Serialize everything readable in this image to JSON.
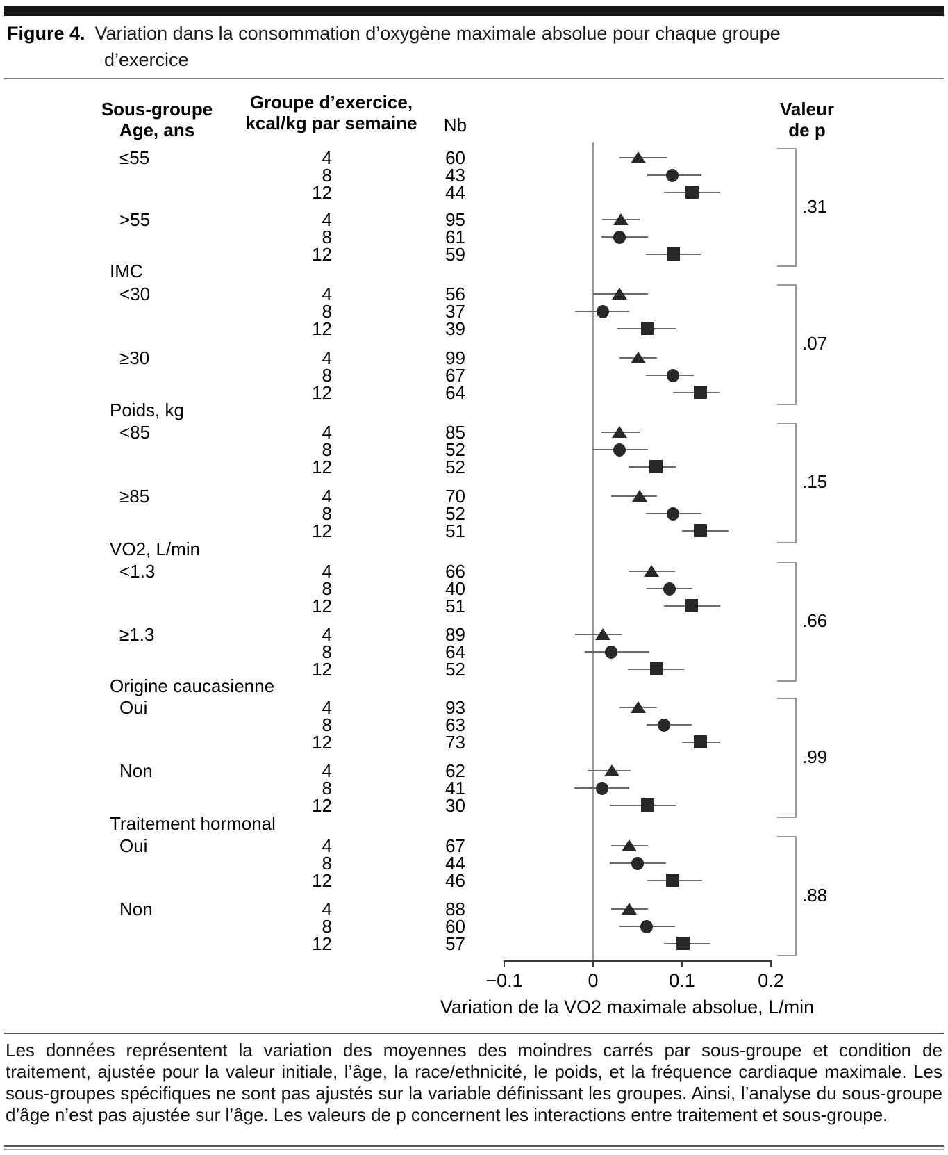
{
  "figure": {
    "label": "Figure 4.",
    "title_line1": "Variation dans la consommation d’oxygène maximale absolue pour chaque groupe",
    "title_line2": "d’exercice"
  },
  "columns": {
    "subgroup": [
      "Sous-groupe",
      "Age, ans"
    ],
    "exercise": [
      "Groupe d’exercice,",
      "kcal/kg par semaine"
    ],
    "n": "Nb",
    "p": [
      "Valeur",
      "de p"
    ]
  },
  "chart_data": {
    "type": "forest",
    "xlabel": "Variation de la VO2 maximale absolue, L/min",
    "xlim": [
      -0.1,
      0.2
    ],
    "x_ticks": [
      {
        "v": -0.1,
        "label": "−0.1"
      },
      {
        "v": 0,
        "label": "0"
      },
      {
        "v": 0.1,
        "label": "0.1"
      },
      {
        "v": 0.2,
        "label": "0.2"
      }
    ],
    "marker_by_dose": {
      "4": "triangle",
      "8": "circle",
      "12": "square"
    },
    "pairs": [
      {
        "section": null,
        "p_value": ".31",
        "groups": [
          {
            "label": "≤55",
            "rows": [
              {
                "dose": "4",
                "n": "60",
                "est": 0.051,
                "lo": 0.03,
                "hi": 0.083
              },
              {
                "dose": "8",
                "n": "43",
                "est": 0.089,
                "lo": 0.061,
                "hi": 0.122
              },
              {
                "dose": "12",
                "n": "44",
                "est": 0.111,
                "lo": 0.08,
                "hi": 0.143
              }
            ]
          },
          {
            "label": ">55",
            "rows": [
              {
                "dose": "4",
                "n": "95",
                "est": 0.031,
                "lo": 0.01,
                "hi": 0.052
              },
              {
                "dose": "8",
                "n": "61",
                "est": 0.03,
                "lo": 0.009,
                "hi": 0.062
              },
              {
                "dose": "12",
                "n": "59",
                "est": 0.09,
                "lo": 0.059,
                "hi": 0.121
              }
            ]
          }
        ]
      },
      {
        "section": "IMC",
        "p_value": ".07",
        "groups": [
          {
            "label": "<30",
            "rows": [
              {
                "dose": "4",
                "n": "56",
                "est": 0.03,
                "lo": 0.0,
                "hi": 0.062
              },
              {
                "dose": "8",
                "n": "37",
                "est": 0.011,
                "lo": -0.02,
                "hi": 0.041
              },
              {
                "dose": "12",
                "n": "39",
                "est": 0.061,
                "lo": 0.027,
                "hi": 0.093
              }
            ]
          },
          {
            "label": "≥30",
            "rows": [
              {
                "dose": "4",
                "n": "99",
                "est": 0.051,
                "lo": 0.03,
                "hi": 0.072
              },
              {
                "dose": "8",
                "n": "67",
                "est": 0.09,
                "lo": 0.059,
                "hi": 0.113
              },
              {
                "dose": "12",
                "n": "64",
                "est": 0.12,
                "lo": 0.09,
                "hi": 0.142
              }
            ]
          }
        ]
      },
      {
        "section": "Poids, kg",
        "p_value": ".15",
        "groups": [
          {
            "label": "<85",
            "rows": [
              {
                "dose": "4",
                "n": "85",
                "est": 0.03,
                "lo": 0.009,
                "hi": 0.052
              },
              {
                "dose": "8",
                "n": "52",
                "est": 0.03,
                "lo": -0.001,
                "hi": 0.062
              },
              {
                "dose": "12",
                "n": "52",
                "est": 0.07,
                "lo": 0.04,
                "hi": 0.093
              }
            ]
          },
          {
            "label": "≥85",
            "rows": [
              {
                "dose": "4",
                "n": "70",
                "est": 0.052,
                "lo": 0.02,
                "hi": 0.072
              },
              {
                "dose": "8",
                "n": "52",
                "est": 0.09,
                "lo": 0.059,
                "hi": 0.122
              },
              {
                "dose": "12",
                "n": "51",
                "est": 0.12,
                "lo": 0.1,
                "hi": 0.152
              }
            ]
          }
        ]
      },
      {
        "section": "VO2, L/min",
        "p_value": ".66",
        "groups": [
          {
            "label": "<1.3",
            "rows": [
              {
                "dose": "4",
                "n": "66",
                "est": 0.066,
                "lo": 0.04,
                "hi": 0.092
              },
              {
                "dose": "8",
                "n": "40",
                "est": 0.086,
                "lo": 0.06,
                "hi": 0.112
              },
              {
                "dose": "12",
                "n": "51",
                "est": 0.11,
                "lo": 0.08,
                "hi": 0.143
              }
            ]
          },
          {
            "label": "≥1.3",
            "rows": [
              {
                "dose": "4",
                "n": "89",
                "est": 0.011,
                "lo": -0.02,
                "hi": 0.033
              },
              {
                "dose": "8",
                "n": "64",
                "est": 0.02,
                "lo": -0.009,
                "hi": 0.063
              },
              {
                "dose": "12",
                "n": "52",
                "est": 0.071,
                "lo": 0.039,
                "hi": 0.102
              }
            ]
          }
        ]
      },
      {
        "section": "Origine caucasienne",
        "p_value": ".99",
        "groups": [
          {
            "label": "Oui",
            "rows": [
              {
                "dose": "4",
                "n": "93",
                "est": 0.051,
                "lo": 0.03,
                "hi": 0.072
              },
              {
                "dose": "8",
                "n": "63",
                "est": 0.08,
                "lo": 0.06,
                "hi": 0.111
              },
              {
                "dose": "12",
                "n": "73",
                "est": 0.12,
                "lo": 0.1,
                "hi": 0.142
              }
            ]
          },
          {
            "label": "Non",
            "rows": [
              {
                "dose": "4",
                "n": "62",
                "est": 0.021,
                "lo": -0.006,
                "hi": 0.042
              },
              {
                "dose": "8",
                "n": "41",
                "est": 0.01,
                "lo": -0.021,
                "hi": 0.041
              },
              {
                "dose": "12",
                "n": "30",
                "est": 0.061,
                "lo": 0.019,
                "hi": 0.093
              }
            ]
          }
        ]
      },
      {
        "section": "Traitement hormonal",
        "p_value": ".88",
        "groups": [
          {
            "label": "Oui",
            "rows": [
              {
                "dose": "4",
                "n": "67",
                "est": 0.041,
                "lo": 0.02,
                "hi": 0.062
              },
              {
                "dose": "8",
                "n": "44",
                "est": 0.05,
                "lo": 0.019,
                "hi": 0.082
              },
              {
                "dose": "12",
                "n": "46",
                "est": 0.089,
                "lo": 0.061,
                "hi": 0.123
              }
            ]
          },
          {
            "label": "Non",
            "rows": [
              {
                "dose": "4",
                "n": "88",
                "est": 0.041,
                "lo": 0.02,
                "hi": 0.062
              },
              {
                "dose": "8",
                "n": "60",
                "est": 0.06,
                "lo": 0.03,
                "hi": 0.092
              },
              {
                "dose": "12",
                "n": "57",
                "est": 0.101,
                "lo": 0.08,
                "hi": 0.131
              }
            ]
          }
        ]
      }
    ]
  },
  "footnote": "Les données représentent la variation des moyennes des moindres carrés par sous-groupe et condition de traitement, ajustée pour la valeur initiale, l’âge, la race/ethnicité, le poids, et la fréquence cardiaque maximale. Les sous-groupes spécifiques ne sont pas ajustés sur la variable définissant les groupes. Ainsi, l’analyse du sous-groupe d’âge n’est pas ajustée sur l’âge. Les valeurs de p concernent les interactions entre traitement et sous-groupe."
}
